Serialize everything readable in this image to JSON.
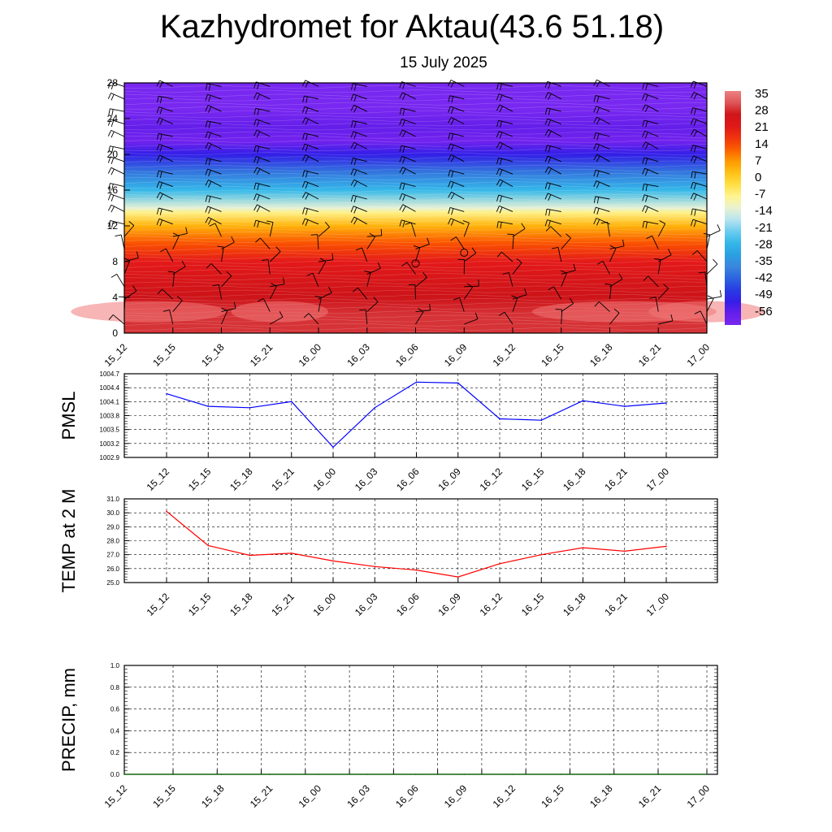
{
  "title": "Kazhydromet for Aktau(43.6 51.18)",
  "subtitle": "15 July 2025",
  "colors": {
    "pmsl_line": "#0000ff",
    "temp_line": "#ff0000",
    "precip_line": "#006400",
    "grid": "#000000"
  },
  "chart_data": [
    {
      "type": "heatmap",
      "name": "cross-section",
      "x": [
        "15_12",
        "15_15",
        "15_18",
        "15_21",
        "16_00",
        "16_03",
        "16_06",
        "16_09",
        "16_12",
        "16_15",
        "16_18",
        "16_21",
        "17_00"
      ],
      "y_ticks": [
        "0",
        "4",
        "8",
        "12",
        "16",
        "20",
        "24",
        "28"
      ],
      "ylim": [
        0,
        28
      ],
      "profile_levels": [
        0,
        2,
        4,
        6,
        8,
        10,
        12,
        13.5,
        14,
        16,
        18,
        20,
        21.5,
        23,
        25,
        28
      ],
      "profile_values": [
        30,
        30,
        28,
        25,
        21,
        14,
        5,
        -6,
        -12,
        -26,
        -38,
        -50,
        -58,
        -55,
        -60,
        -60
      ],
      "colorbar": [
        "35",
        "28",
        "21",
        "14",
        "7",
        "0",
        "-7",
        "-14",
        "-21",
        "-28",
        "-35",
        "-42",
        "-49",
        "-56"
      ],
      "wind_barbs": true,
      "calm_markers": [
        "16_06",
        "16_09"
      ]
    },
    {
      "type": "line",
      "name": "PMSL",
      "ylabel": "PMSL",
      "x": [
        "15_12",
        "15_15",
        "15_18",
        "15_21",
        "16_00",
        "16_03",
        "16_06",
        "16_09",
        "16_12",
        "16_15",
        "16_18",
        "16_21",
        "17_00"
      ],
      "values": [
        1004.27,
        1004.0,
        1003.97,
        1004.1,
        1003.12,
        1003.97,
        1004.52,
        1004.5,
        1003.73,
        1003.7,
        1004.12,
        1004.0,
        1004.07
      ],
      "y_ticks": [
        "1004.7",
        "1004.4",
        "1004.1",
        "1003.8",
        "1003.5",
        "1003.2",
        "1002.9"
      ],
      "ylim": [
        1002.9,
        1004.7
      ]
    },
    {
      "type": "line",
      "name": "TEMP at 2 M",
      "ylabel": "TEMP at 2 M",
      "x": [
        "15_12",
        "15_15",
        "15_18",
        "15_21",
        "16_00",
        "16_03",
        "16_06",
        "16_09",
        "16_12",
        "16_15",
        "16_18",
        "16_21",
        "17_00"
      ],
      "values": [
        30.1,
        27.65,
        26.95,
        27.1,
        26.55,
        26.15,
        25.9,
        25.4,
        26.35,
        27.0,
        27.5,
        27.25,
        27.6
      ],
      "y_ticks": [
        "31.0",
        "30.0",
        "29.0",
        "28.0",
        "27.0",
        "26.0",
        "25.0"
      ],
      "ylim": [
        25.0,
        31.0
      ]
    },
    {
      "type": "line",
      "name": "PRECIP, mm",
      "ylabel": "PRECIP, mm",
      "x": [
        "15_12",
        "15_15",
        "15_18",
        "15_21",
        "16_00",
        "16_03",
        "16_06",
        "16_09",
        "16_12",
        "16_15",
        "16_18",
        "16_21",
        "17_00"
      ],
      "values": [
        0,
        0,
        0,
        0,
        0,
        0,
        0,
        0,
        0,
        0,
        0,
        0,
        0
      ],
      "y_ticks": [
        "1.0",
        "0.8",
        "0.6",
        "0.4",
        "0.2",
        "0.0"
      ],
      "ylim": [
        0,
        1.0
      ]
    }
  ]
}
